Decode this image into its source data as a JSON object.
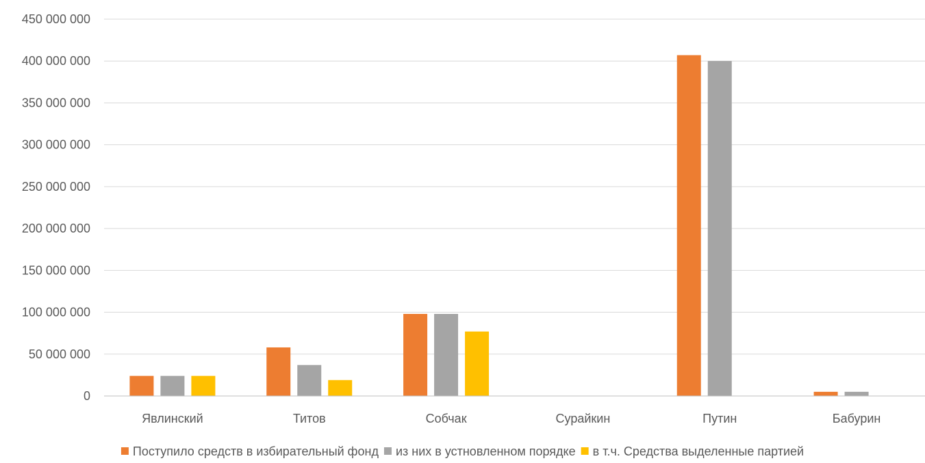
{
  "chart_data": {
    "type": "bar",
    "categories": [
      "Явлинский",
      "Титов",
      "Собчак",
      "Сурайкин",
      "Путин",
      "Бабурин"
    ],
    "series": [
      {
        "name": "Поступило средств в избирательный фонд",
        "color": "#ed7d31",
        "values": [
          24000000,
          58000000,
          98000000,
          0,
          407000000,
          5000000
        ]
      },
      {
        "name": "из них  в устновленном порядке",
        "color": "#a5a5a5",
        "values": [
          24000000,
          37000000,
          98000000,
          0,
          400000000,
          5000000
        ]
      },
      {
        "name": "в т.ч. Средства выделенные партией",
        "color": "#ffc000",
        "values": [
          24000000,
          19000000,
          77000000,
          0,
          0,
          0
        ]
      }
    ],
    "yticks": [
      "0",
      "50 000 000",
      "100 000 000",
      "150 000 000",
      "200 000 000",
      "250 000 000",
      "300 000 000",
      "350 000 000",
      "400 000 000",
      "450 000 000"
    ],
    "ylim": [
      0,
      450000000
    ],
    "grid": true,
    "legend": "bottom"
  }
}
